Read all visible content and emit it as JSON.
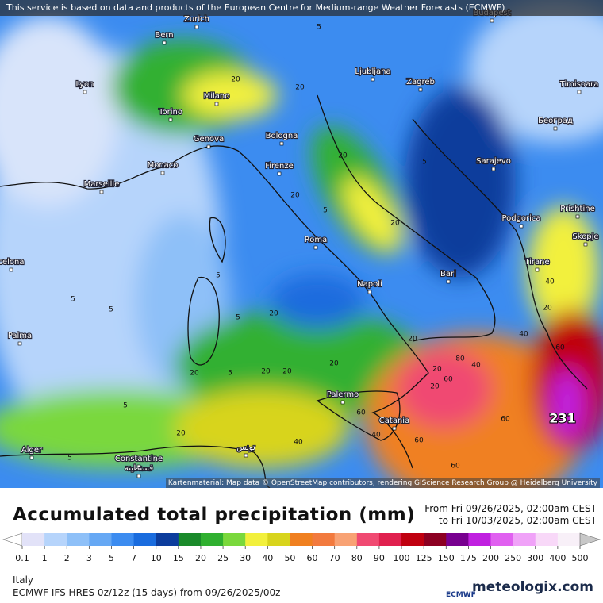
{
  "notice": "This service is based on data and products of the European Centre for Medium-range Weather Forecasts (ECMWF)",
  "attribution": "Kartenmaterial: Map data © OpenStreetMap contributors, rendering GIScience Research Group @ Heidelberg University",
  "cities": [
    "Bern",
    "Zurich",
    "Budapest",
    "Lyon",
    "Milano",
    "Ljubljana",
    "Zagreb",
    "Timisoara",
    "Torino",
    "Београд",
    "Genova",
    "Bologna",
    "Monaco",
    "Sarajevo",
    "Firenze",
    "Marseille",
    "Podgorica",
    "Prishtine",
    "Roma",
    "Skopje",
    "Tirane",
    "celona",
    "Bari",
    "Napoli",
    "Palma",
    "Palermo",
    "Catania",
    "Alger",
    "تونس",
    "Constantine",
    "قسنطينة"
  ],
  "contour_labels": [
    "20",
    "20",
    "5",
    "20",
    "20",
    "5",
    "20",
    "5",
    "20",
    "5",
    "20",
    "5",
    "5",
    "5",
    "5",
    "20",
    "5",
    "40",
    "20",
    "20",
    "20",
    "5",
    "20",
    "20",
    "20",
    "40",
    "80",
    "40",
    "60",
    "60",
    "60",
    "40",
    "60",
    "60",
    "60",
    "40",
    "20",
    "231"
  ],
  "title": "Accumulated total precipitation (mm)",
  "period_from": "From Fri 09/26/2025, 02:00am CEST",
  "period_to": "to Fri 10/03/2025, 02:00am CEST",
  "legend": {
    "values": [
      0.1,
      1,
      2,
      3,
      5,
      7,
      10,
      15,
      20,
      25,
      30,
      40,
      50,
      60,
      70,
      80,
      90,
      100,
      125,
      150,
      175,
      200,
      250,
      300,
      400,
      500
    ],
    "colors": [
      "#ffffff",
      "#e2e2f8",
      "#b6d4fb",
      "#8ec0f8",
      "#66a8f4",
      "#3c8cf0",
      "#1a6cde",
      "#0c3c9c",
      "#1a8a2a",
      "#30b030",
      "#7ad83c",
      "#f2f03c",
      "#d8d41c",
      "#f08020",
      "#f27a3e",
      "#f8a274",
      "#f04a72",
      "#e0204e",
      "#c00010",
      "#8c0022",
      "#780090",
      "#c020e0",
      "#e060f0",
      "#f0a2f8",
      "#f8d8f8",
      "#f8f0f8",
      "#c8c8c8"
    ]
  },
  "region": "Italy",
  "model": "ECMWF IFS HRES 0z/12z (15 days) from  09/26/2025/00z",
  "ecmwf_logo": "ECMWF",
  "brand": "meteologix.com"
}
